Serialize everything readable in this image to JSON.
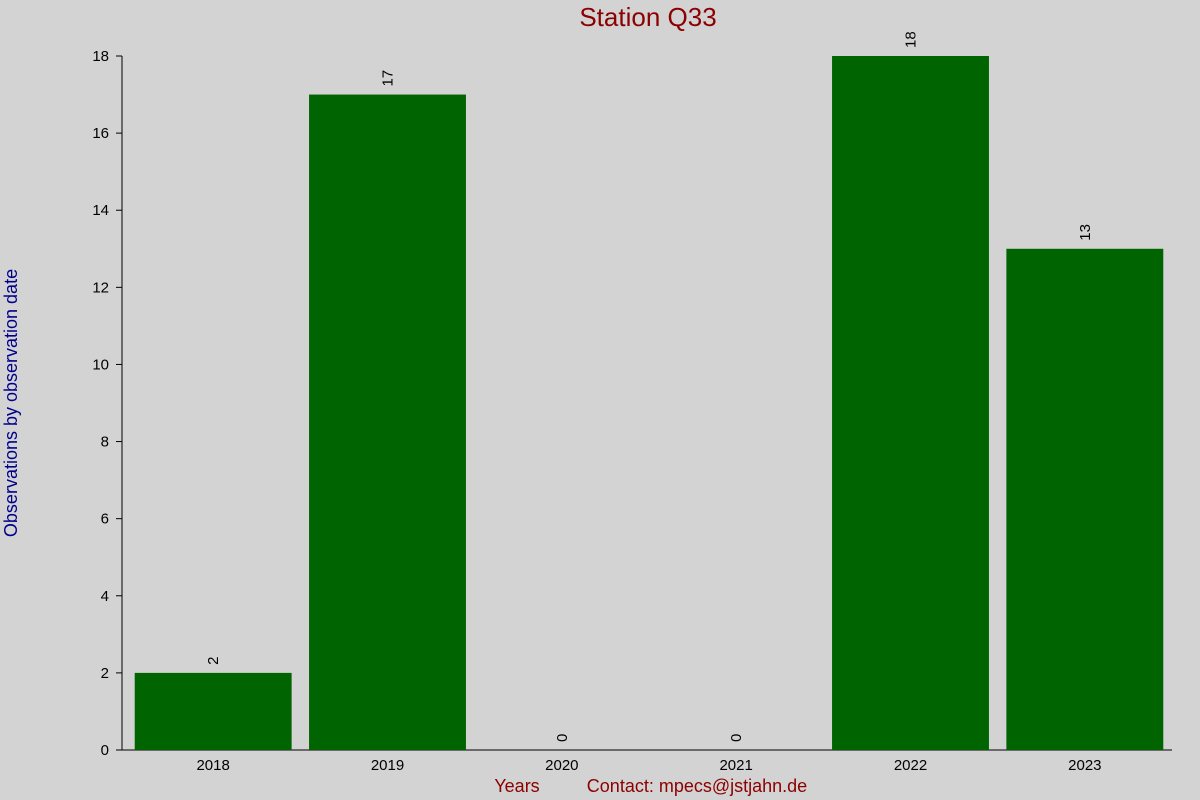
{
  "chart_data": {
    "type": "bar",
    "title": "Station Q33",
    "y_label": "Observations by observation date",
    "x_label": "Years",
    "annotation": "Contact: mpecs@jstjahn.de",
    "categories": [
      "2018",
      "2019",
      "2020",
      "2021",
      "2022",
      "2023"
    ],
    "values": [
      2,
      17,
      0,
      0,
      18,
      13
    ],
    "color": "#006400",
    "ylim": [
      0,
      18
    ],
    "yticks": [
      0,
      2,
      4,
      6,
      8,
      10,
      12,
      14,
      16,
      18
    ],
    "grid": false
  }
}
